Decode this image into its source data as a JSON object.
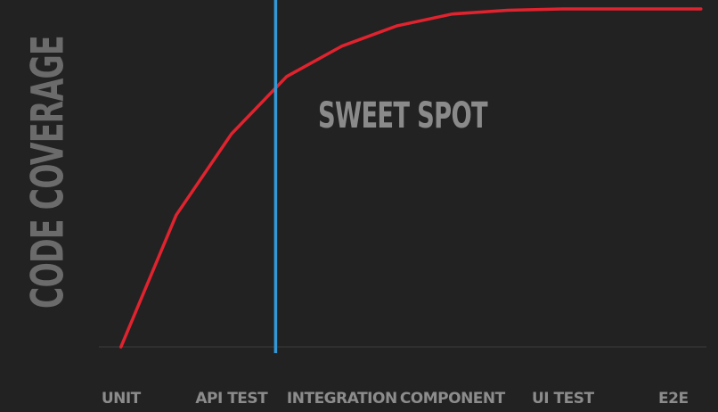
{
  "chart_data": {
    "type": "line",
    "title": "",
    "xlabel": "",
    "ylabel": "CODE COVERAGE",
    "categories": [
      "UNIT",
      "API  TEST",
      "INTEGRATION",
      "COMPONENT",
      "UI TEST",
      "E2E"
    ],
    "x": [
      0,
      0.5,
      1,
      1.5,
      2,
      2.5,
      3,
      3.5,
      4,
      4.5,
      5,
      5.25
    ],
    "series": [
      {
        "values": [
          0,
          39,
          63,
          80,
          89,
          95,
          98.5,
          99.6,
          100,
          100,
          100,
          100
        ]
      }
    ],
    "xlim": [
      -0.2,
      5.3
    ],
    "ylim": [
      0,
      100
    ],
    "marker_x": 1.4,
    "annotation": "SWEET SPOT",
    "grid": false,
    "colors": {
      "background": "#222222",
      "line": "#e0232e",
      "marker": "#3398d6",
      "baseline": "#3c3c3c",
      "text": "#8a8a8a",
      "ylabel": "#6b6b6b"
    }
  }
}
